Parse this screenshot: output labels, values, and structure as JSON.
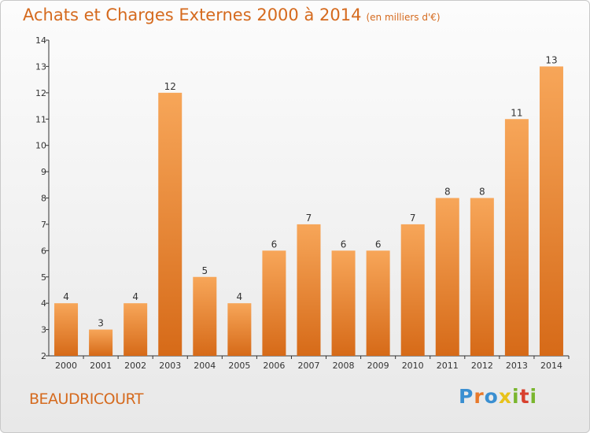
{
  "header": {
    "title": "Achats et Charges Externes 2000 à 2014",
    "subtitle": "(en milliers d'€)"
  },
  "footer": {
    "commune": "BEAUDRICOURT",
    "logo": {
      "letters": [
        "P",
        "r",
        "o",
        "x",
        "i",
        "t",
        "i"
      ],
      "colors": [
        "#3a8fd1",
        "#e8792a",
        "#3a8fd1",
        "#e8c21a",
        "#7ab62e",
        "#d8402e",
        "#7ab62e"
      ]
    }
  },
  "chart_data": {
    "type": "bar",
    "categories": [
      "2000",
      "2001",
      "2002",
      "2003",
      "2004",
      "2005",
      "2006",
      "2007",
      "2008",
      "2009",
      "2010",
      "2011",
      "2012",
      "2013",
      "2014"
    ],
    "values": [
      4,
      3,
      4,
      12,
      5,
      4,
      6,
      7,
      6,
      6,
      7,
      8,
      8,
      11,
      13
    ],
    "title": "Achats et Charges Externes 2000 à 2014",
    "xlabel": "",
    "ylabel": "",
    "ylim": [
      2,
      14
    ],
    "yticks": [
      2,
      3,
      4,
      5,
      6,
      7,
      8,
      9,
      10,
      11,
      12,
      13,
      14
    ],
    "grid": false,
    "legend": "none",
    "bar_color": "#e8822f"
  }
}
